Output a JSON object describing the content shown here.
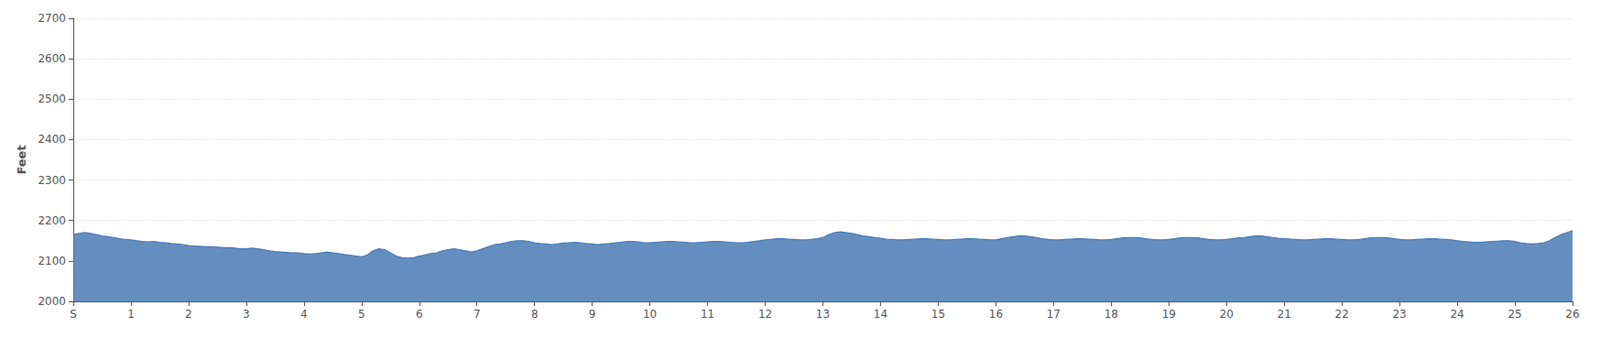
{
  "chart_data": {
    "type": "area",
    "ylabel": "Feet",
    "color": "#4a7ab5",
    "grid": true,
    "xlim": [
      0,
      26
    ],
    "xticks": [
      {
        "value": 0,
        "label": "S"
      },
      1,
      2,
      3,
      4,
      5,
      6,
      7,
      8,
      9,
      10,
      11,
      12,
      13,
      14,
      15,
      16,
      17,
      18,
      19,
      20,
      21,
      22,
      23,
      24,
      25,
      26
    ],
    "ylim": [
      2000,
      2700
    ],
    "yticks": [
      2000,
      2100,
      2200,
      2300,
      2400,
      2500,
      2600,
      2700
    ],
    "x": [
      0.0,
      0.1,
      0.2,
      0.3,
      0.4,
      0.5,
      0.6,
      0.7,
      0.8,
      0.9,
      1.0,
      1.1,
      1.2,
      1.3,
      1.4,
      1.5,
      1.6,
      1.7,
      1.8,
      1.9,
      2.0,
      2.1,
      2.2,
      2.3,
      2.4,
      2.5,
      2.6,
      2.7,
      2.8,
      2.9,
      3.0,
      3.1,
      3.2,
      3.3,
      3.4,
      3.5,
      3.6,
      3.7,
      3.8,
      3.9,
      4.0,
      4.1,
      4.2,
      4.3,
      4.4,
      4.5,
      4.6,
      4.7,
      4.8,
      4.9,
      5.0,
      5.1,
      5.2,
      5.3,
      5.4,
      5.5,
      5.6,
      5.7,
      5.8,
      5.9,
      6.0,
      6.1,
      6.2,
      6.3,
      6.4,
      6.5,
      6.6,
      6.7,
      6.8,
      6.9,
      7.0,
      7.1,
      7.2,
      7.3,
      7.4,
      7.5,
      7.6,
      7.7,
      7.8,
      7.9,
      8.0,
      8.1,
      8.2,
      8.3,
      8.4,
      8.5,
      8.6,
      8.7,
      8.8,
      8.9,
      9.0,
      9.1,
      9.2,
      9.3,
      9.4,
      9.5,
      9.6,
      9.7,
      9.8,
      9.9,
      10.0,
      10.1,
      10.2,
      10.3,
      10.4,
      10.5,
      10.6,
      10.7,
      10.8,
      10.9,
      11.0,
      11.1,
      11.2,
      11.3,
      11.4,
      11.5,
      11.6,
      11.7,
      11.8,
      11.9,
      12.0,
      12.1,
      12.2,
      12.3,
      12.4,
      12.5,
      12.6,
      12.7,
      12.8,
      12.9,
      13.0,
      13.1,
      13.2,
      13.3,
      13.4,
      13.5,
      13.6,
      13.7,
      13.8,
      13.9,
      14.0,
      14.1,
      14.2,
      14.3,
      14.4,
      14.5,
      14.6,
      14.7,
      14.8,
      14.9,
      15.0,
      15.1,
      15.2,
      15.3,
      15.4,
      15.5,
      15.6,
      15.7,
      15.8,
      15.9,
      16.0,
      16.1,
      16.2,
      16.3,
      16.4,
      16.5,
      16.6,
      16.7,
      16.8,
      16.9,
      17.0,
      17.1,
      17.2,
      17.3,
      17.4,
      17.5,
      17.6,
      17.7,
      17.8,
      17.9,
      18.0,
      18.1,
      18.2,
      18.3,
      18.4,
      18.5,
      18.6,
      18.7,
      18.8,
      18.9,
      19.0,
      19.1,
      19.2,
      19.3,
      19.4,
      19.5,
      19.6,
      19.7,
      19.8,
      19.9,
      20.0,
      20.1,
      20.2,
      20.3,
      20.4,
      20.5,
      20.6,
      20.7,
      20.8,
      20.9,
      21.0,
      21.1,
      21.2,
      21.3,
      21.4,
      21.5,
      21.6,
      21.7,
      21.8,
      21.9,
      22.0,
      22.1,
      22.2,
      22.3,
      22.4,
      22.5,
      22.6,
      22.7,
      22.8,
      22.9,
      23.0,
      23.1,
      23.2,
      23.3,
      23.4,
      23.5,
      23.6,
      23.7,
      23.8,
      23.9,
      24.0,
      24.1,
      24.2,
      24.3,
      24.4,
      24.5,
      24.6,
      24.7,
      24.8,
      24.9,
      25.0,
      25.1,
      25.2,
      25.3,
      25.4,
      25.5,
      25.6,
      25.7,
      25.8,
      25.9,
      26.0
    ],
    "values": [
      2165,
      2168,
      2170,
      2168,
      2165,
      2162,
      2160,
      2158,
      2155,
      2153,
      2152,
      2150,
      2148,
      2147,
      2148,
      2146,
      2145,
      2143,
      2142,
      2140,
      2138,
      2137,
      2136,
      2135,
      2135,
      2134,
      2133,
      2133,
      2132,
      2130,
      2130,
      2132,
      2130,
      2128,
      2125,
      2123,
      2122,
      2121,
      2120,
      2120,
      2118,
      2117,
      2118,
      2120,
      2122,
      2120,
      2118,
      2116,
      2114,
      2112,
      2110,
      2115,
      2125,
      2130,
      2128,
      2120,
      2112,
      2108,
      2107,
      2108,
      2112,
      2115,
      2118,
      2120,
      2125,
      2128,
      2130,
      2128,
      2125,
      2122,
      2125,
      2130,
      2135,
      2140,
      2142,
      2145,
      2148,
      2150,
      2150,
      2148,
      2145,
      2143,
      2142,
      2140,
      2142,
      2144,
      2145,
      2146,
      2145,
      2143,
      2142,
      2140,
      2142,
      2143,
      2145,
      2146,
      2148,
      2148,
      2147,
      2145,
      2145,
      2146,
      2147,
      2148,
      2148,
      2147,
      2146,
      2145,
      2145,
      2146,
      2147,
      2148,
      2148,
      2147,
      2146,
      2145,
      2145,
      2146,
      2148,
      2150,
      2152,
      2153,
      2155,
      2155,
      2154,
      2153,
      2152,
      2152,
      2153,
      2155,
      2158,
      2165,
      2170,
      2172,
      2170,
      2168,
      2165,
      2162,
      2160,
      2158,
      2156,
      2154,
      2153,
      2152,
      2152,
      2153,
      2154,
      2155,
      2155,
      2154,
      2153,
      2152,
      2152,
      2153,
      2154,
      2155,
      2155,
      2154,
      2153,
      2152,
      2152,
      2155,
      2158,
      2160,
      2162,
      2162,
      2160,
      2158,
      2155,
      2153,
      2152,
      2152,
      2153,
      2154,
      2155,
      2155,
      2154,
      2153,
      2152,
      2152,
      2153,
      2155,
      2157,
      2158,
      2158,
      2157,
      2155,
      2153,
      2152,
      2152,
      2153,
      2155,
      2157,
      2158,
      2158,
      2157,
      2155,
      2153,
      2152,
      2152,
      2153,
      2155,
      2157,
      2158,
      2160,
      2162,
      2162,
      2160,
      2158,
      2156,
      2155,
      2154,
      2153,
      2152,
      2152,
      2153,
      2154,
      2155,
      2155,
      2154,
      2153,
      2152,
      2152,
      2153,
      2155,
      2157,
      2158,
      2158,
      2157,
      2155,
      2153,
      2152,
      2152,
      2153,
      2154,
      2155,
      2155,
      2154,
      2153,
      2152,
      2150,
      2148,
      2147,
      2146,
      2146,
      2147,
      2148,
      2149,
      2150,
      2150,
      2148,
      2145,
      2143,
      2142,
      2143,
      2145,
      2150,
      2158,
      2165,
      2170,
      2175
    ]
  }
}
